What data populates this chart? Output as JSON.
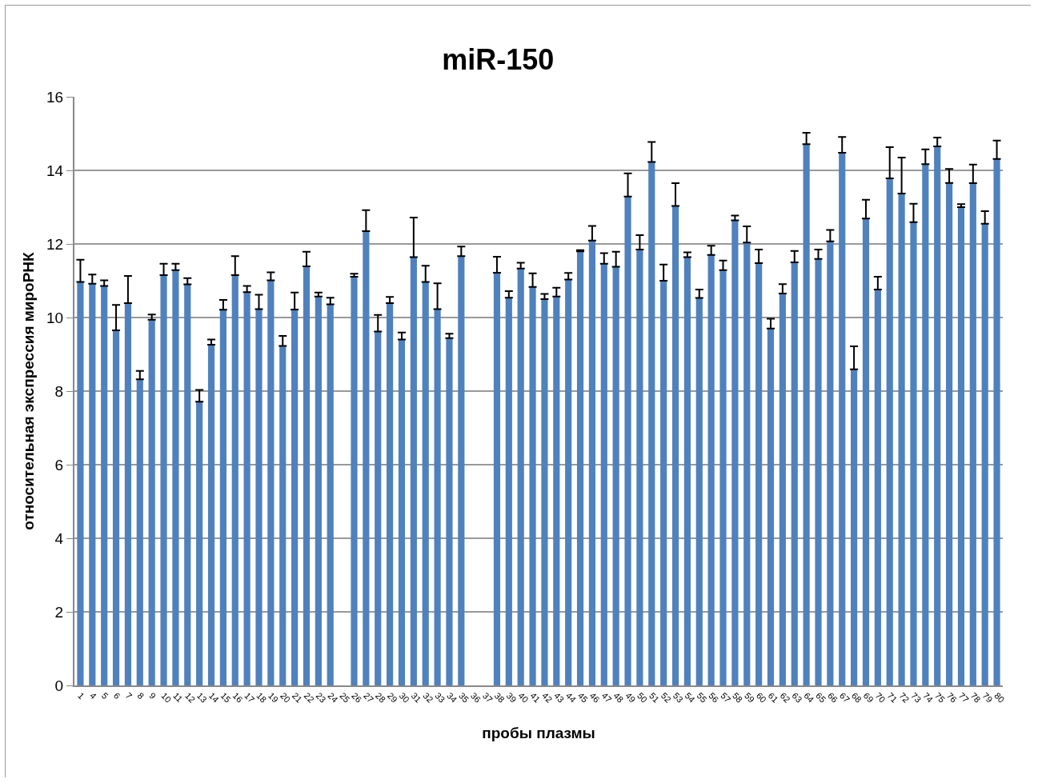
{
  "chart_data": {
    "type": "bar",
    "title": "miR-150",
    "xlabel": "пробы плазмы",
    "ylabel": "относительная экспрессия мироРНК",
    "categories": [
      "1",
      "4",
      "5",
      "6",
      "7",
      "8",
      "9",
      "10",
      "11",
      "12",
      "13",
      "14",
      "15",
      "16",
      "17",
      "18",
      "19",
      "20",
      "21",
      "22",
      "23",
      "24",
      "25",
      "26",
      "27",
      "28",
      "29",
      "30",
      "31",
      "32",
      "33",
      "34",
      "35",
      "36",
      "37",
      "38",
      "39",
      "40",
      "41",
      "42",
      "43",
      "44",
      "45",
      "46",
      "47",
      "48",
      "49",
      "50",
      "51",
      "52",
      "53",
      "54",
      "55",
      "56",
      "57",
      "58",
      "59",
      "60",
      "61",
      "62",
      "63",
      "64",
      "65",
      "66",
      "67",
      "68",
      "69",
      "70",
      "71",
      "72",
      "73",
      "74",
      "75",
      "76",
      "77",
      "78",
      "79",
      "80"
    ],
    "values": [
      10.97,
      10.92,
      10.86,
      9.65,
      10.39,
      8.32,
      9.94,
      11.15,
      11.29,
      10.9,
      7.71,
      9.26,
      10.21,
      11.15,
      10.69,
      10.23,
      11.01,
      9.23,
      10.22,
      11.39,
      10.57,
      10.36,
      null,
      11.11,
      12.35,
      9.62,
      10.39,
      9.4,
      11.64,
      10.97,
      10.23,
      9.44,
      11.67,
      null,
      null,
      11.22,
      10.54,
      11.33,
      10.83,
      10.5,
      10.57,
      11.03,
      11.8,
      12.09,
      11.46,
      11.38,
      13.29,
      11.85,
      14.23,
      11.0,
      13.03,
      11.64,
      10.53,
      11.7,
      11.29,
      12.64,
      12.04,
      11.48,
      9.7,
      10.65,
      11.5,
      14.71,
      11.59,
      12.07,
      14.48,
      8.59,
      12.69,
      10.76,
      13.78,
      13.37,
      12.59,
      14.17,
      14.65,
      13.66,
      13.0,
      13.65,
      12.55,
      14.31
    ],
    "errors": [
      [
        10.97,
        11.57
      ],
      [
        10.92,
        11.17
      ],
      [
        10.86,
        11.01
      ],
      [
        9.65,
        10.34
      ],
      [
        10.39,
        11.13
      ],
      [
        8.32,
        8.55
      ],
      [
        9.94,
        10.08
      ],
      [
        11.15,
        11.46
      ],
      [
        11.29,
        11.46
      ],
      [
        10.9,
        11.07
      ],
      [
        7.71,
        8.03
      ],
      [
        9.26,
        9.4
      ],
      [
        10.21,
        10.48
      ],
      [
        11.15,
        11.67
      ],
      [
        10.69,
        10.86
      ],
      [
        10.23,
        10.62
      ],
      [
        11.01,
        11.23
      ],
      [
        9.23,
        9.5
      ],
      [
        10.22,
        10.68
      ],
      [
        11.39,
        11.79
      ],
      [
        10.57,
        10.68
      ],
      [
        10.36,
        10.54
      ],
      null,
      [
        11.11,
        11.19
      ],
      [
        12.35,
        12.92
      ],
      [
        9.62,
        10.07
      ],
      [
        10.39,
        10.56
      ],
      [
        9.4,
        9.59
      ],
      [
        11.64,
        12.72
      ],
      [
        10.97,
        11.41
      ],
      [
        10.23,
        10.93
      ],
      [
        9.44,
        9.56
      ],
      [
        11.67,
        11.93
      ],
      null,
      null,
      [
        11.22,
        11.65
      ],
      [
        10.54,
        10.72
      ],
      [
        11.33,
        11.49
      ],
      [
        10.83,
        11.2
      ],
      [
        10.5,
        10.64
      ],
      [
        10.57,
        10.81
      ],
      [
        11.03,
        11.21
      ],
      [
        11.8,
        11.83
      ],
      [
        12.09,
        12.49
      ],
      [
        11.46,
        11.75
      ],
      [
        11.38,
        11.79
      ],
      [
        13.29,
        13.92
      ],
      [
        11.85,
        12.24
      ],
      [
        14.23,
        14.77
      ],
      [
        11.0,
        11.44
      ],
      [
        13.03,
        13.65
      ],
      [
        11.64,
        11.77
      ],
      [
        10.53,
        10.76
      ],
      [
        11.7,
        11.95
      ],
      [
        11.29,
        11.55
      ],
      [
        12.64,
        12.77
      ],
      [
        12.04,
        12.48
      ],
      [
        11.48,
        11.85
      ],
      [
        9.7,
        9.97
      ],
      [
        10.65,
        10.91
      ],
      [
        11.5,
        11.81
      ],
      [
        14.71,
        15.02
      ],
      [
        11.59,
        11.85
      ],
      [
        12.07,
        12.38
      ],
      [
        14.48,
        14.91
      ],
      [
        8.59,
        9.22
      ],
      [
        12.69,
        13.2
      ],
      [
        10.76,
        11.11
      ],
      [
        13.78,
        14.63
      ],
      [
        13.37,
        14.35
      ],
      [
        12.59,
        13.09
      ],
      [
        14.17,
        14.57
      ],
      [
        14.65,
        14.89
      ],
      [
        13.66,
        14.04
      ],
      [
        13.0,
        13.08
      ],
      [
        13.65,
        14.16
      ],
      [
        12.55,
        12.89
      ],
      [
        14.31,
        14.81
      ]
    ],
    "color": "#4f81bd",
    "ylim": [
      0,
      16
    ],
    "yticks": [
      0,
      2,
      4,
      6,
      8,
      10,
      12,
      14,
      16
    ],
    "grid": "y",
    "legend": false
  }
}
